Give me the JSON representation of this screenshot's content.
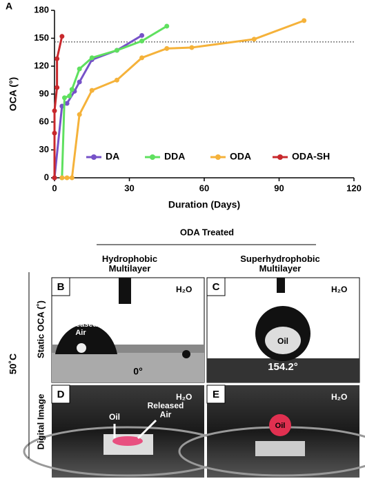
{
  "chart_data": {
    "type": "line",
    "panel_label": "A",
    "x_label": "Duration (Days)",
    "y_label": "OCA (°)",
    "xlim": [
      0,
      120
    ],
    "xticks": [
      0,
      30,
      60,
      90,
      120
    ],
    "ylim": [
      0,
      180
    ],
    "yticks": [
      0,
      30,
      60,
      90,
      120,
      150,
      180
    ],
    "reference_line": 146,
    "legend": "lower right",
    "series": [
      {
        "name": "DA",
        "color": "#7652c8",
        "x": [
          0,
          3,
          5,
          8,
          10,
          15,
          25,
          35
        ],
        "values": [
          0,
          77,
          80,
          93,
          103,
          127,
          137,
          153
        ]
      },
      {
        "name": "DDA",
        "color": "#5fe05f",
        "x": [
          3,
          4,
          6,
          7,
          10,
          15,
          25,
          35,
          45
        ],
        "values": [
          0,
          86,
          88,
          95,
          117,
          129,
          137,
          147,
          163
        ]
      },
      {
        "name": "ODA",
        "color": "#f5b23a",
        "x": [
          3,
          5,
          7,
          10,
          15,
          25,
          35,
          45,
          55,
          80,
          100
        ],
        "values": [
          0,
          0,
          0,
          68,
          94,
          105,
          129,
          139,
          140,
          149,
          169
        ]
      },
      {
        "name": "ODA-SH",
        "color": "#c8282c",
        "x": [
          0,
          0,
          0,
          1,
          1,
          3
        ],
        "values": [
          0,
          48,
          72,
          97,
          128,
          152
        ]
      }
    ]
  },
  "figure": {
    "group_title": "ODA Treated",
    "col1": "Hydrophobic\nMultilayer",
    "col2": "Superhydrophobic\nMultilayer",
    "temperature": "50˚C",
    "row1": "Static OCA (˚)",
    "row2": "Digital Image",
    "panels": [
      {
        "label": "B",
        "medium": "H₂O",
        "note": "Released\nAir",
        "angle": "0°"
      },
      {
        "label": "C",
        "medium": "H₂O",
        "note": "Oil",
        "angle": "154.2°"
      },
      {
        "label": "D",
        "medium": "H₂O",
        "note": "Oil",
        "note2": "Released\nAir"
      },
      {
        "label": "E",
        "medium": "H₂O",
        "note": "Oil"
      }
    ]
  }
}
